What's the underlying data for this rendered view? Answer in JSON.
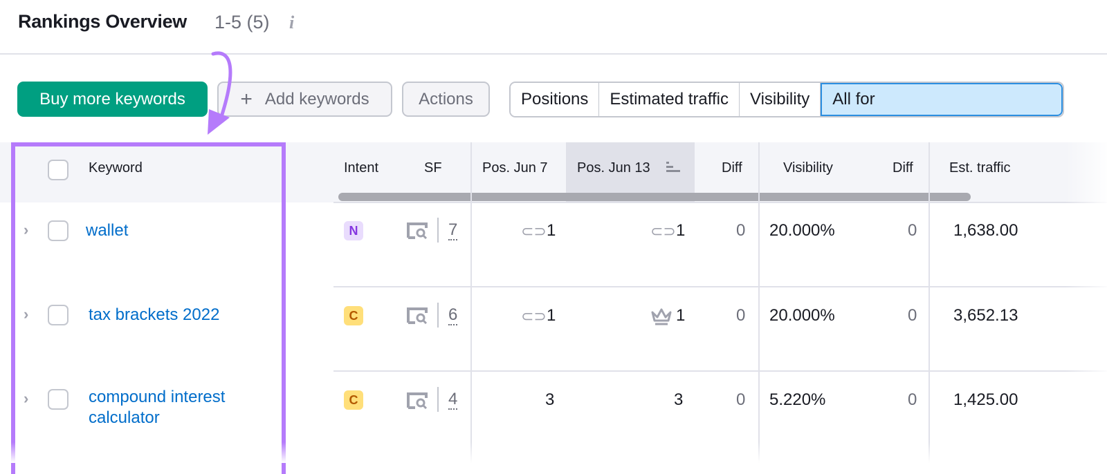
{
  "header": {
    "title": "Rankings Overview",
    "count": "1-5 (5)",
    "info_icon": "i"
  },
  "toolbar": {
    "buy": "Buy more keywords",
    "add": "Add keywords",
    "add_icon": "+",
    "actions": "Actions",
    "segments": [
      "Positions",
      "Estimated traffic",
      "Visibility",
      "All for"
    ],
    "selected_segment": "All for"
  },
  "table": {
    "columns": [
      "Keyword",
      "Intent",
      "SF",
      "Pos. Jun 7",
      "Pos. Jun 13",
      "Diff",
      "Visibility",
      "Diff",
      "Est. traffic"
    ],
    "sorted_column": "Pos. Jun 13",
    "rows": [
      {
        "keyword": "wallet",
        "intent": "N",
        "sf": "7",
        "pos_jun7": "1",
        "pos_jun7_icon": "link-icon",
        "pos_jun13": "1",
        "pos_jun13_icon": "link-icon",
        "diff": "0",
        "visibility": "20.000%",
        "vis_diff": "0",
        "traffic": "1,638.00"
      },
      {
        "keyword": "tax brackets 2022",
        "intent": "C",
        "sf": "6",
        "pos_jun7": "1",
        "pos_jun7_icon": "link-icon",
        "pos_jun13": "1",
        "pos_jun13_icon": "crown-icon",
        "diff": "0",
        "visibility": "20.000%",
        "vis_diff": "0",
        "traffic": "3,652.13"
      },
      {
        "keyword": "compound interest calculator",
        "intent": "C",
        "sf": "4",
        "pos_jun7": "3",
        "pos_jun13": "3",
        "diff": "0",
        "visibility": "5.220%",
        "vis_diff": "0",
        "traffic": "1,425.00"
      }
    ]
  },
  "colors": {
    "accent_green": "#009f81",
    "highlight_purple": "#b57bfb",
    "link_blue": "#006dca",
    "selected_blue": "#cde9fd"
  }
}
